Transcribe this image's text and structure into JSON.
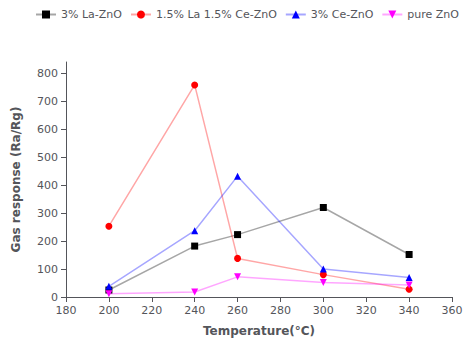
{
  "chart_data": {
    "type": "line",
    "xlabel": "Temperature(°C)",
    "ylabel": "Gas response (Ra/Rg)",
    "x": [
      200,
      240,
      260,
      300,
      340
    ],
    "series": [
      {
        "name": "3% La-ZnO",
        "color": "#000000",
        "marker": "square",
        "values": [
          25,
          182,
          223,
          320,
          152
        ]
      },
      {
        "name": "1.5% La 1.5% Ce-ZnO",
        "color": "#ff0000",
        "marker": "circle",
        "values": [
          253,
          758,
          138,
          80,
          28
        ]
      },
      {
        "name": "3% Ce-ZnO",
        "color": "#0000ff",
        "marker": "triangle",
        "values": [
          38,
          237,
          432,
          100,
          70
        ]
      },
      {
        "name": "pure ZnO",
        "color": "#ff00ff",
        "marker": "triangle-down",
        "values": [
          12,
          18,
          72,
          52,
          43
        ]
      }
    ],
    "xlim": [
      180,
      360
    ],
    "xticks": [
      180,
      200,
      220,
      240,
      260,
      280,
      300,
      320,
      340,
      360
    ],
    "ylim": [
      0,
      840
    ],
    "yticks": [
      0,
      100,
      200,
      300,
      400,
      500,
      600,
      700,
      800
    ],
    "legend": "upper right",
    "grid": false
  }
}
